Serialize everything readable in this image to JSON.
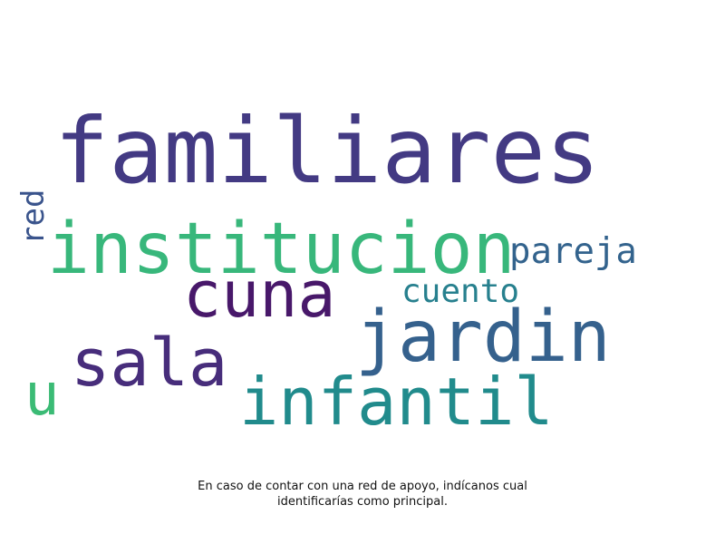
{
  "words": {
    "familiares": {
      "text": "familiares",
      "color": "#433a83"
    },
    "institucion": {
      "text": "institucion",
      "color": "#38b77b"
    },
    "cuna": {
      "text": "cuna",
      "color": "#48186a"
    },
    "jardin": {
      "text": "jardin",
      "color": "#35618d"
    },
    "sala": {
      "text": "sala",
      "color": "#472d7b"
    },
    "infantil": {
      "text": "infantil",
      "color": "#218b8c"
    },
    "pareja": {
      "text": "pareja",
      "color": "#33638d"
    },
    "cuento": {
      "text": "cuento",
      "color": "#27808e"
    },
    "u": {
      "text": "u",
      "color": "#3bbb75"
    },
    "red": {
      "text": "red",
      "color": "#3a548c"
    }
  },
  "caption": {
    "line1": "En caso de contar con una red de apoyo, indícanos cual",
    "line2": "identificarías como principal."
  }
}
